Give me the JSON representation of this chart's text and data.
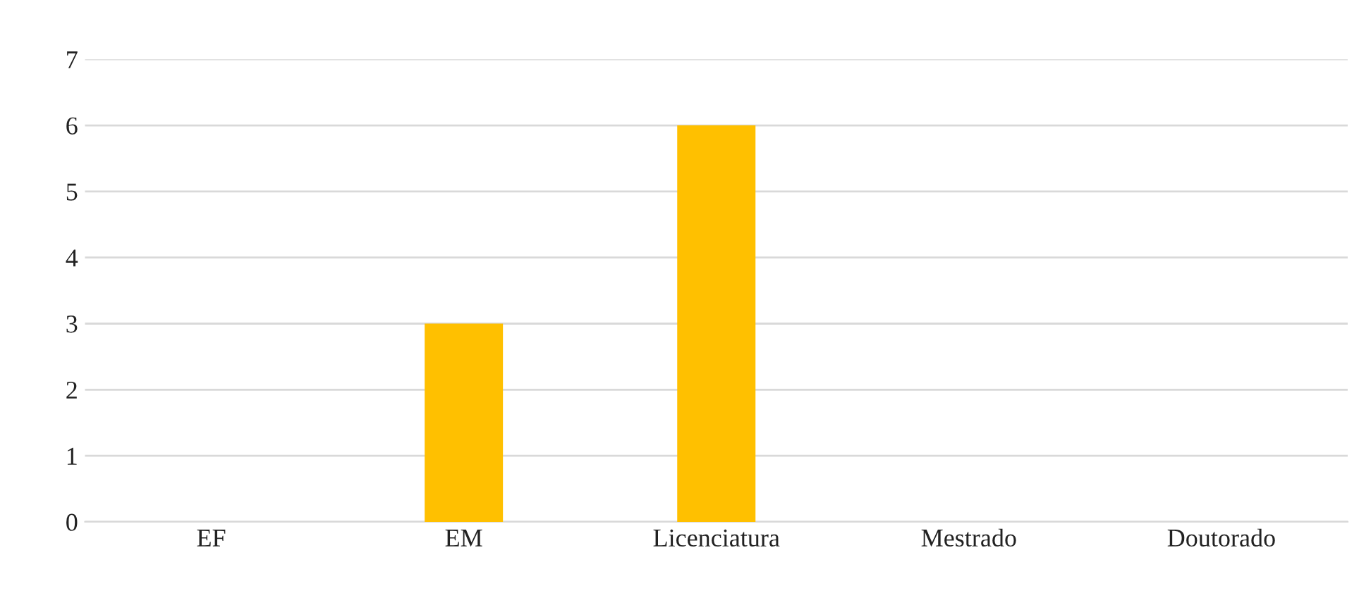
{
  "chart_data": {
    "type": "bar",
    "categories": [
      "EF",
      "EM",
      "Licenciatura",
      "Mestrado",
      "Doutorado"
    ],
    "values": [
      0,
      3,
      6,
      0,
      0
    ],
    "color": "#ffc000",
    "ylim": [
      0,
      7
    ],
    "yticks": [
      0,
      1,
      2,
      3,
      4,
      5,
      6,
      7
    ],
    "grid": "y",
    "legend": false
  }
}
